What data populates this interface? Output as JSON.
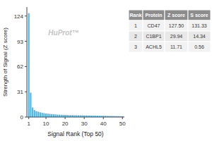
{
  "chart_data": {
    "type": "bar",
    "xlabel": "Signal Rank (Top 50)",
    "ylabel": "Strength of Signal (Z score)",
    "annotation": "HuProt™",
    "x": [
      1,
      2,
      3,
      4,
      5,
      6,
      7,
      8,
      9,
      10,
      11,
      12,
      13,
      14,
      15,
      16,
      17,
      18,
      19,
      20,
      21,
      22,
      23,
      24,
      25,
      26,
      27,
      28,
      29,
      30,
      31,
      32,
      33,
      34,
      35,
      36,
      37,
      38,
      39,
      40,
      41,
      42,
      43,
      44,
      45,
      46,
      47,
      48,
      49,
      50
    ],
    "values": [
      127.5,
      29.94,
      11.71,
      8.5,
      7.2,
      6.5,
      5.8,
      5.2,
      4.8,
      4.4,
      4.1,
      3.8,
      3.6,
      3.4,
      3.2,
      3.0,
      2.9,
      2.8,
      2.7,
      2.6,
      2.5,
      2.4,
      2.35,
      2.3,
      2.25,
      2.2,
      2.15,
      2.1,
      2.05,
      2.0,
      1.95,
      1.9,
      1.85,
      1.8,
      1.75,
      1.7,
      1.65,
      1.6,
      1.55,
      1.5,
      1.45,
      1.4,
      1.35,
      1.3,
      1.25,
      1.2,
      1.15,
      1.1,
      1.05,
      1.0
    ],
    "color": "#4db8e8",
    "xlim": [
      0,
      51
    ],
    "ylim": [
      0,
      135
    ],
    "xticks": [
      1,
      10,
      20,
      30,
      40,
      50
    ],
    "yticks": [
      0,
      31,
      62,
      93,
      124
    ],
    "grid": false,
    "table": {
      "headers": [
        "Rank",
        "Protein",
        "Z score",
        "S score"
      ],
      "rows": [
        [
          "1",
          "CD47",
          "127.50",
          "131.33"
        ],
        [
          "2",
          "C1BP1",
          "29.94",
          "14.34"
        ],
        [
          "3",
          "ACHL5",
          "11.71",
          "0.56"
        ]
      ]
    }
  }
}
